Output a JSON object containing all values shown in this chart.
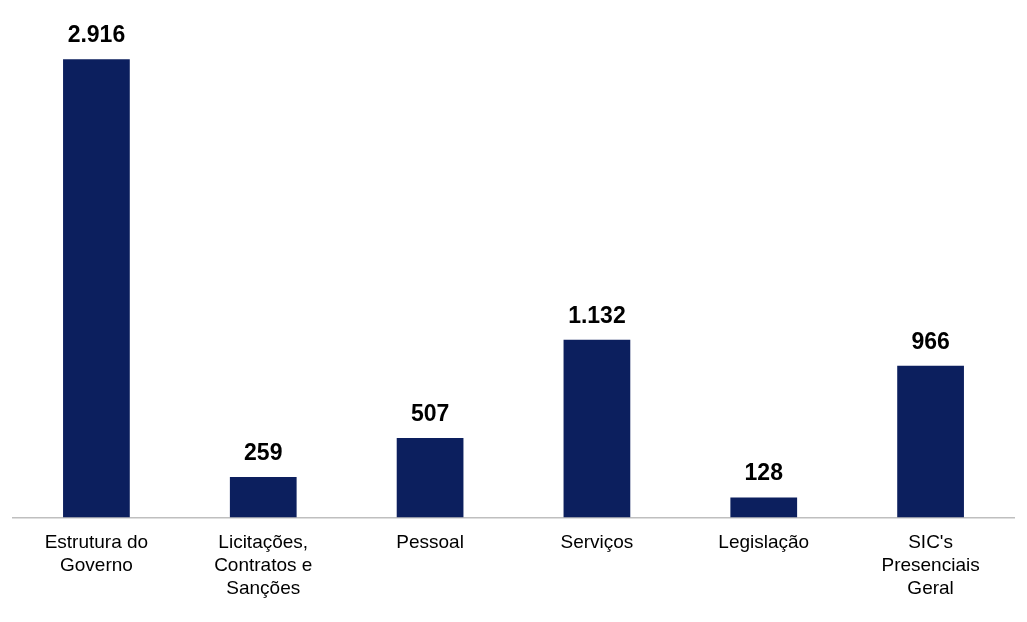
{
  "chart_data": {
    "type": "bar",
    "categories": [
      "Estrutura do Governo",
      "Licitações, Contratos e Sanções",
      "Pessoal",
      "Serviços",
      "Legislação",
      "SIC's Presenciais Geral"
    ],
    "values": [
      2916,
      259,
      507,
      1132,
      128,
      966
    ],
    "value_labels": [
      "2.916",
      "259",
      "507",
      "1.132",
      "128",
      "966"
    ],
    "color": "#0c1f5e",
    "grid": false,
    "legend": false
  }
}
